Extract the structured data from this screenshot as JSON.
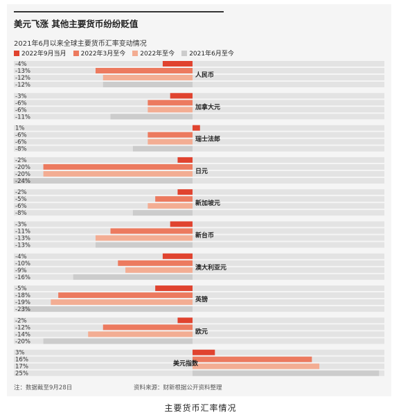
{
  "caption": "主要货币汇率情况",
  "colors": {
    "s0": "#e0432f",
    "s1": "#ec7a5f",
    "s2": "#f3ad93",
    "s3": "#cccccc",
    "rowbg": "#e3e3e3",
    "panel": "#f5f5f5"
  },
  "chart_data": {
    "type": "bar",
    "orientation": "horizontal",
    "title": "美元飞涨  其他主要货币纷纷贬值",
    "subtitle": "2021年6月以来全球主要货币汇率变动情况",
    "series": [
      {
        "name": "2022年9月当月",
        "color": "#e0432f",
        "values": [
          -4,
          -3,
          1,
          -2,
          -2,
          -3,
          -4,
          -5,
          -2,
          3
        ]
      },
      {
        "name": "2022年3月至今",
        "color": "#ec7a5f",
        "values": [
          -13,
          -6,
          -6,
          -20,
          -5,
          -11,
          -10,
          -18,
          -12,
          16
        ]
      },
      {
        "name": "2022年至今",
        "color": "#f3ad93",
        "values": [
          -12,
          -6,
          -6,
          -20,
          -6,
          -13,
          -9,
          -19,
          -14,
          17
        ]
      },
      {
        "name": "2021年6月至今",
        "color": "#cccccc",
        "values": [
          -12,
          -11,
          -8,
          -24,
          -8,
          -13,
          -16,
          -23,
          -20,
          25
        ]
      }
    ],
    "categories": [
      "人民币",
      "加拿大元",
      "瑞士法郎",
      "日元",
      "新加坡元",
      "新台币",
      "澳大利亚元",
      "英镑",
      "欧元",
      "美元指数"
    ],
    "value_labels": [
      [
        "-4%",
        "-13%",
        "-12%",
        "-12%"
      ],
      [
        "-3%",
        "-6%",
        "-6%",
        "-11%"
      ],
      [
        "1%",
        "-6%",
        "-6%",
        "-8%"
      ],
      [
        "-2%",
        "-20%",
        "-20%",
        "-24%"
      ],
      [
        "-2%",
        "-5%",
        "-6%",
        "-8%"
      ],
      [
        "-3%",
        "-11%",
        "-13%",
        "-13%"
      ],
      [
        "-4%",
        "-10%",
        "-9%",
        "-16%"
      ],
      [
        "-5%",
        "-18%",
        "-19%",
        "-23%"
      ],
      [
        "-2%",
        "-12%",
        "-14%",
        "-20%"
      ],
      [
        "3%",
        "16%",
        "17%",
        "25%"
      ]
    ],
    "legend_position": "top-left",
    "note": "注：数据截至9月28日",
    "source": "资料来源：财新根据公开资料整理"
  }
}
